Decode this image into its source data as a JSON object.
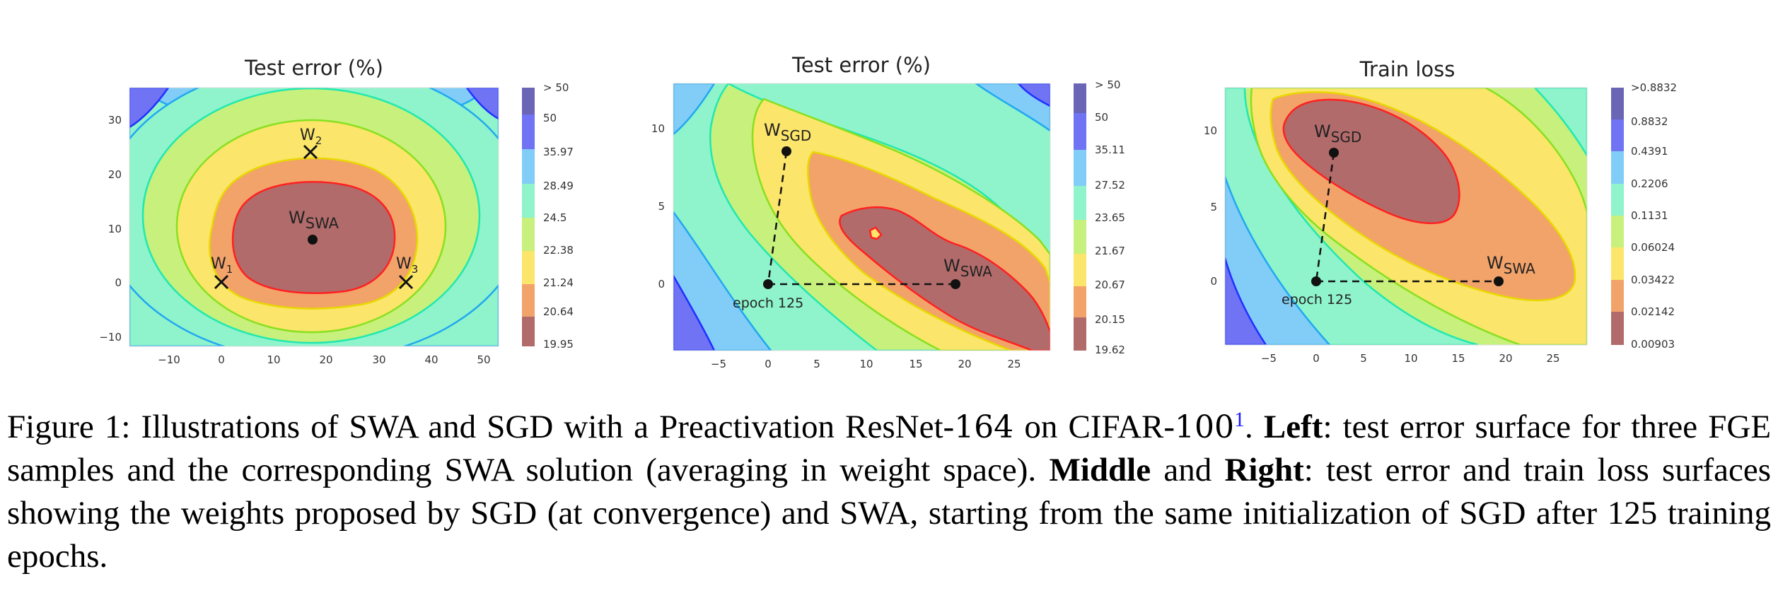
{
  "figure": {
    "panels": [
      {
        "id": "left",
        "title": "Test error (%)",
        "x_ticks": [
          "−10",
          "0",
          "10",
          "20",
          "30",
          "40",
          "50"
        ],
        "y_ticks": [
          "30",
          "20",
          "10",
          "0",
          "−10"
        ],
        "colorbar_labels": [
          "> 50",
          "50",
          "35.97",
          "28.49",
          "24.5",
          "22.38",
          "21.24",
          "20.64",
          "19.95"
        ],
        "points": [
          {
            "label": "W",
            "sub": "SWA",
            "marker": "dot"
          },
          {
            "label": "W",
            "sub": "1",
            "marker": "cross"
          },
          {
            "label": "W",
            "sub": "2",
            "marker": "cross"
          },
          {
            "label": "W",
            "sub": "3",
            "marker": "cross"
          }
        ]
      },
      {
        "id": "middle",
        "title": "Test error (%)",
        "x_ticks": [
          "−5",
          "0",
          "5",
          "10",
          "15",
          "20",
          "25"
        ],
        "y_ticks": [
          "10",
          "5",
          "0"
        ],
        "colorbar_labels": [
          "> 50",
          "50",
          "35.11",
          "27.52",
          "23.65",
          "21.67",
          "20.67",
          "20.15",
          "19.62"
        ],
        "points": [
          {
            "label": "W",
            "sub": "SGD",
            "marker": "dot"
          },
          {
            "label": "W",
            "sub": "SWA",
            "marker": "dot"
          },
          {
            "label": "epoch 125",
            "sub": "",
            "marker": "dot"
          }
        ]
      },
      {
        "id": "right",
        "title": "Train loss",
        "x_ticks": [
          "−5",
          "0",
          "5",
          "10",
          "15",
          "20",
          "25"
        ],
        "y_ticks": [
          "10",
          "5",
          "0"
        ],
        "colorbar_labels": [
          ">0.8832",
          "0.8832",
          "0.4391",
          "0.2206",
          "0.1131",
          "0.06024",
          "0.03422",
          "0.02142",
          "0.00903"
        ],
        "points": [
          {
            "label": "W",
            "sub": "SGD",
            "marker": "dot"
          },
          {
            "label": "W",
            "sub": "SWA",
            "marker": "dot"
          },
          {
            "label": "epoch 125",
            "sub": "",
            "marker": "dot"
          }
        ]
      }
    ],
    "colors": {
      "level_0": "#b26b6b",
      "level_1": "#f2a36a",
      "level_2": "#fbe56a",
      "level_3": "#c7f07c",
      "level_4": "#8ff3cc",
      "level_5": "#82cdf7",
      "level_6": "#6f73f4",
      "level_7": "#6a66b5",
      "line_0": "#ff2020",
      "line_1": "#ff8a1a",
      "line_2": "#e8d800",
      "line_3": "#88e020",
      "line_4": "#20e8b0",
      "line_5": "#20a8f0",
      "line_6": "#2030ff"
    }
  },
  "caption": {
    "figure_label": "Figure 1:",
    "intro": "Illustrations of SWA and SGD with a Preactivation ResNet-",
    "depth": "164",
    "on_dataset": "on CIFAR-",
    "dataset_num": "100",
    "footnote": "1",
    "period": ".",
    "left_label": "Left",
    "left_text": ": test error surface for three FGE samples and the corresponding SWA solution (averaging in weight space).",
    "middle_label": "Middle",
    "and_word": "and",
    "right_label": "Right",
    "rest_text": ": test error and train loss surfaces showing the weights proposed by SGD (at convergence) and SWA, starting from the same initialization of SGD after 125 training epochs."
  }
}
